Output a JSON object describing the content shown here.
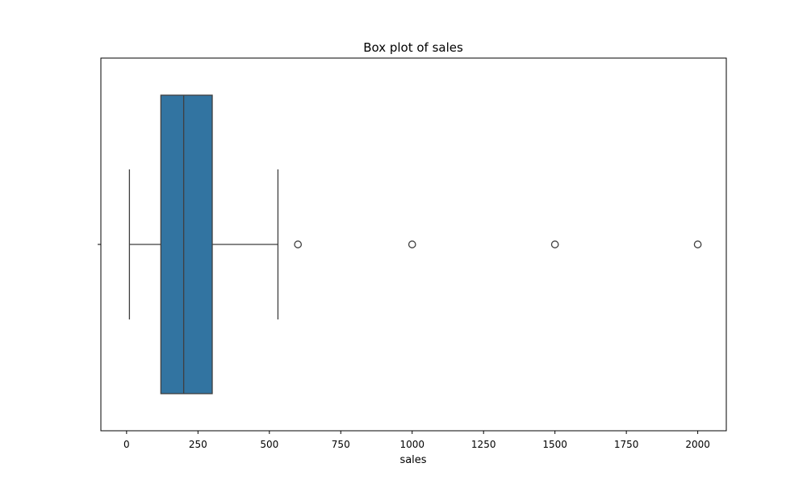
{
  "chart_data": {
    "type": "box",
    "title": "Box plot of sales",
    "xlabel": "sales",
    "ylabel": "",
    "xlim": [
      -90,
      2100
    ],
    "xticks": [
      0,
      250,
      500,
      750,
      1000,
      1250,
      1500,
      1750,
      2000
    ],
    "xtick_labels": [
      "0",
      "250",
      "500",
      "750",
      "1000",
      "1250",
      "1500",
      "1750",
      "2000"
    ],
    "orientation": "horizontal",
    "grid": false,
    "legend": "none",
    "box": {
      "whisker_low": 10,
      "q1": 120,
      "median": 200,
      "q3": 300,
      "whisker_high": 530
    },
    "outliers": [
      600,
      1000,
      1500,
      2000
    ],
    "colors": {
      "box_fill": "#3274a1",
      "line": "#3f3f3f",
      "axes": "#000000"
    }
  }
}
